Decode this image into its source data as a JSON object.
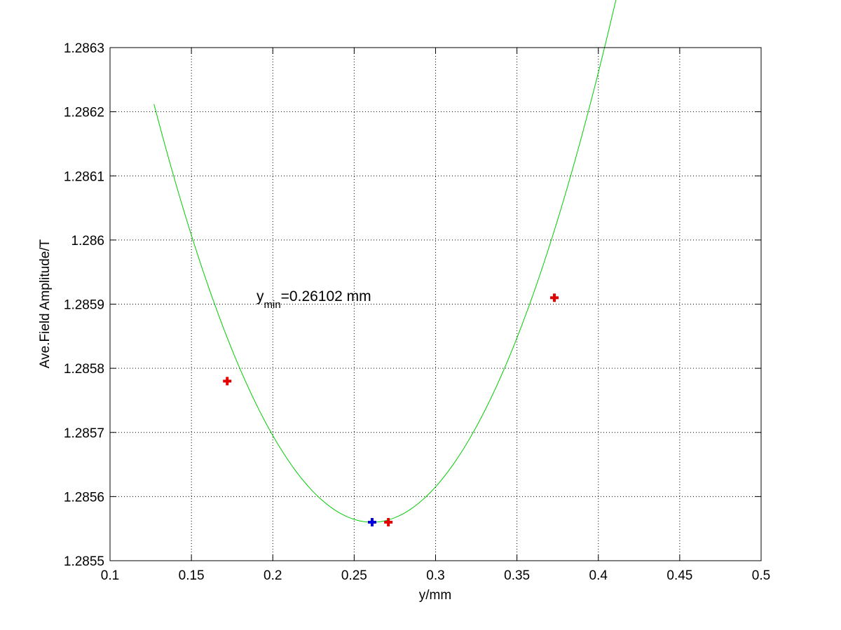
{
  "chart_data": {
    "type": "scatter",
    "title": "",
    "xlabel": "y/mm",
    "ylabel": "Ave.Field Amplitude/T",
    "xlim": [
      0.1,
      0.5
    ],
    "ylim": [
      1.2855,
      1.2863
    ],
    "grid": true,
    "x_ticks": [
      "0.1",
      "0.15",
      "0.2",
      "0.25",
      "0.3",
      "0.35",
      "0.4",
      "0.45",
      "0.5"
    ],
    "y_ticks": [
      "1.2855",
      "1.2856",
      "1.2857",
      "1.2858",
      "1.2859",
      "1.286",
      "1.2861",
      "1.2862",
      "1.2863"
    ],
    "fit_curve": {
      "type": "quadratic",
      "color": "#00cc00",
      "x_range": [
        0.127,
        0.4165
      ],
      "vertex_x": 0.26102,
      "vertex_y": 1.28556,
      "curvature": 0.0363
    },
    "measured_points": {
      "color": "#e00000",
      "marker": "plus",
      "x": [
        0.172,
        0.271,
        0.373
      ],
      "y": [
        1.28578,
        1.28556,
        1.28591
      ]
    },
    "minimum_point": {
      "color": "#0000e0",
      "marker": "plus",
      "x": 0.26102,
      "y": 1.28556
    },
    "annotation": {
      "base": "y",
      "subscript": "min",
      "text": "=0.26102 mm",
      "x": 0.19,
      "y": 1.2859
    }
  }
}
